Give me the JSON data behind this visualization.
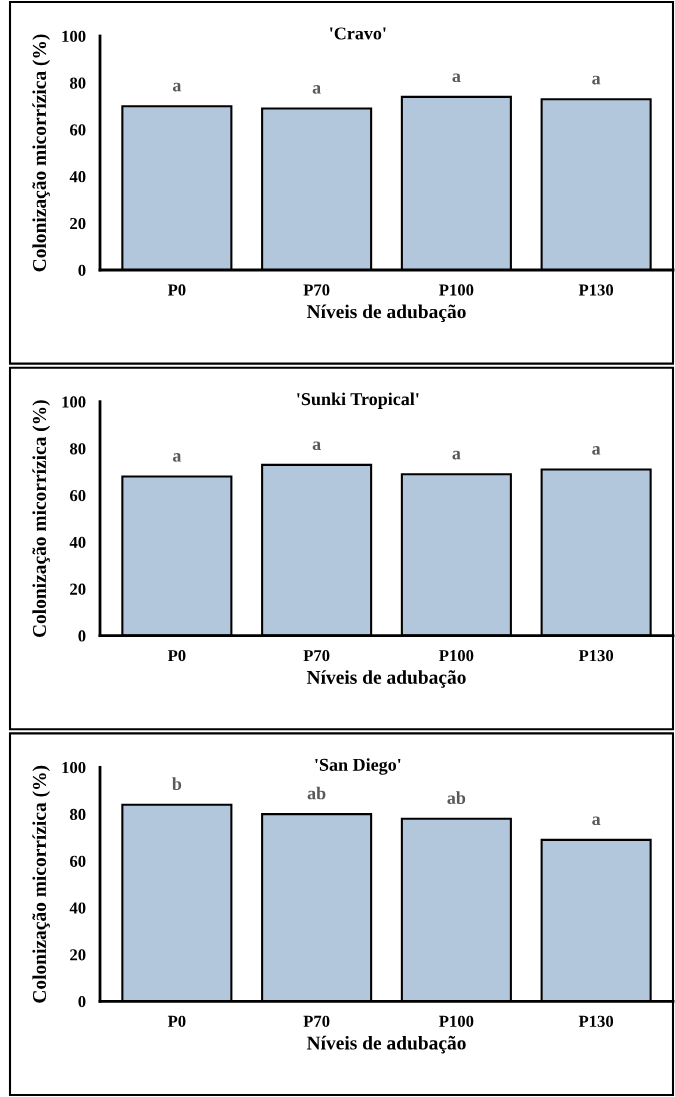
{
  "chart_data": [
    {
      "type": "bar",
      "title": "'Cravo'",
      "xlabel": "Níveis de adubação",
      "ylabel": "Colonização micorrízica (%)",
      "categories": [
        "P0",
        "P70",
        "P100",
        "P130"
      ],
      "values": [
        70,
        69,
        74,
        73
      ],
      "color": "#b3c7dc",
      "ylim": [
        0,
        100
      ],
      "yticks": [
        0,
        20,
        40,
        60,
        80,
        100
      ],
      "grid": false,
      "annotations": [
        {
          "text": "a",
          "x": "P0",
          "y": 70
        },
        {
          "text": "a",
          "x": "P70",
          "y": 69
        },
        {
          "text": "a",
          "x": "P100",
          "y": 74
        },
        {
          "text": "a",
          "x": "P130",
          "y": 73
        }
      ]
    },
    {
      "type": "bar",
      "title": "'Sunki Tropical'",
      "xlabel": "Níveis de adubação",
      "ylabel": "Colonização micorrízica (%)",
      "categories": [
        "P0",
        "P70",
        "P100",
        "P130"
      ],
      "values": [
        68,
        73,
        69,
        71
      ],
      "color": "#b3c7dc",
      "ylim": [
        0,
        100
      ],
      "yticks": [
        0,
        20,
        40,
        60,
        80,
        100
      ],
      "grid": false,
      "annotations": [
        {
          "text": "a",
          "x": "P0",
          "y": 68
        },
        {
          "text": "a",
          "x": "P70",
          "y": 73
        },
        {
          "text": "a",
          "x": "P100",
          "y": 69
        },
        {
          "text": "a",
          "x": "P130",
          "y": 71
        }
      ]
    },
    {
      "type": "bar",
      "title": "'San Diego'",
      "xlabel": "Níveis de adubação",
      "ylabel": "Colonização micorrízica (%)",
      "categories": [
        "P0",
        "P70",
        "P100",
        "P130"
      ],
      "values": [
        84,
        80,
        78,
        69
      ],
      "color": "#b3c7dc",
      "ylim": [
        0,
        100
      ],
      "yticks": [
        0,
        20,
        40,
        60,
        80,
        100
      ],
      "grid": false,
      "annotations": [
        {
          "text": "b",
          "x": "P0",
          "y": 84
        },
        {
          "text": "ab",
          "x": "P70",
          "y": 80
        },
        {
          "text": "ab",
          "x": "P100",
          "y": 78
        },
        {
          "text": "a",
          "x": "P130",
          "y": 69
        }
      ]
    }
  ]
}
